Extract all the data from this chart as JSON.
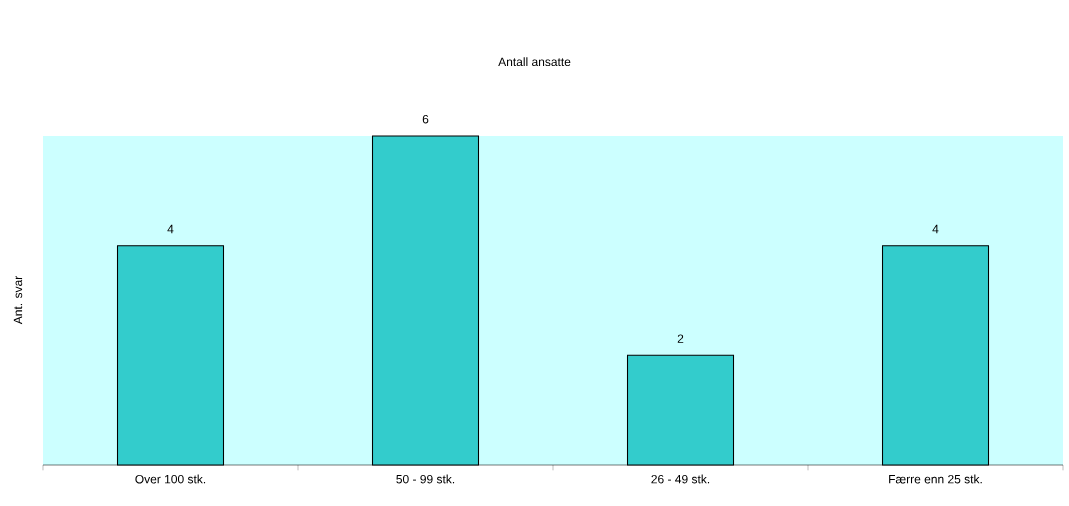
{
  "chart_data": {
    "type": "bar",
    "title": "Antall ansatte",
    "ylabel": "Ant. svar",
    "categories": [
      "Over 100 stk.",
      "50 - 99 stk.",
      "26 - 49 stk.",
      "Færre enn 25 stk."
    ],
    "values": [
      4,
      6,
      2,
      4
    ],
    "color": "#33cccc",
    "ylim": [
      0,
      6
    ],
    "data_labels": true,
    "tick_labels": "x"
  }
}
